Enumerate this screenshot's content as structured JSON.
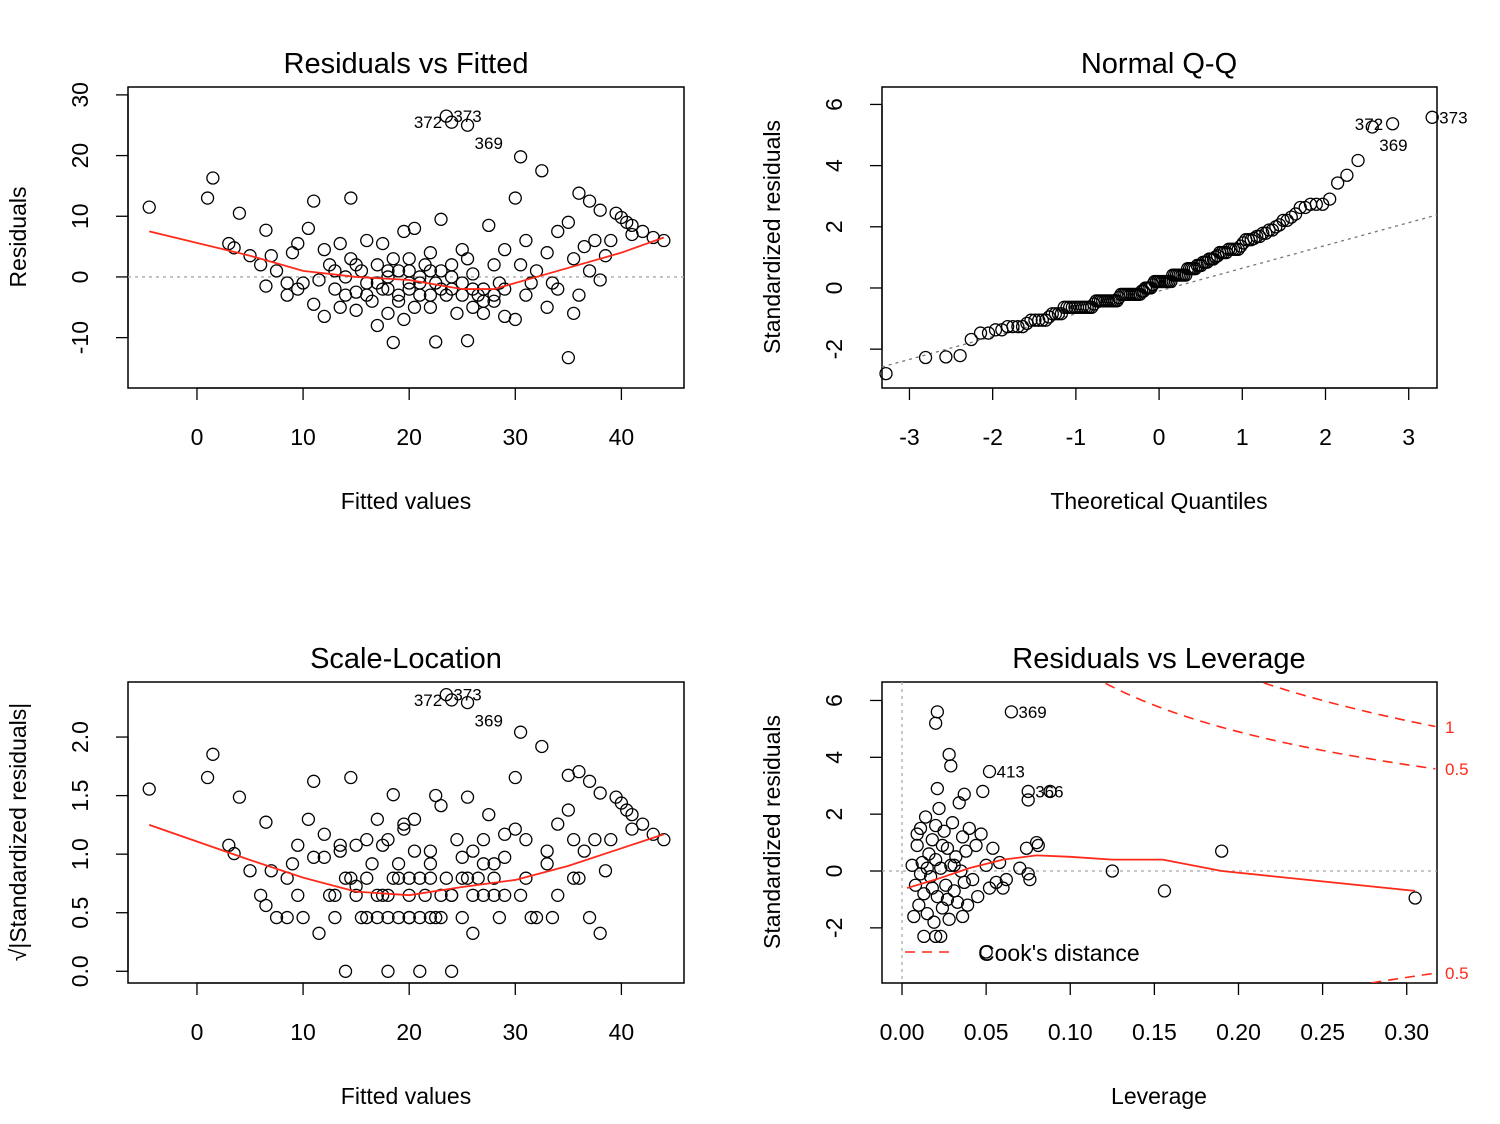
{
  "chart_data": [
    {
      "type": "scatter",
      "title": "Residuals vs Fitted",
      "xlabel": "Fitted values",
      "ylabel": "Residuals",
      "xlim": [
        -6.5,
        45.9
      ],
      "ylim": [
        -18.3,
        31.3
      ],
      "xticks": [
        0,
        10,
        20,
        30,
        40
      ],
      "yticks": [
        -10,
        0,
        10,
        20,
        30
      ],
      "ref_line_y": 0,
      "points": [
        [
          -4.5,
          11.5
        ],
        [
          1,
          13
        ],
        [
          1.5,
          16.3
        ],
        [
          4,
          10.5
        ],
        [
          3,
          5.5
        ],
        [
          3.5,
          4.8
        ],
        [
          5,
          3.5
        ],
        [
          6,
          2
        ],
        [
          6.5,
          7.7
        ],
        [
          6.5,
          -1.5
        ],
        [
          7,
          3.5
        ],
        [
          7.5,
          1
        ],
        [
          8.5,
          -3
        ],
        [
          8.5,
          -1
        ],
        [
          9,
          4
        ],
        [
          9.5,
          5.5
        ],
        [
          9.5,
          -2
        ],
        [
          10,
          -1
        ],
        [
          10.5,
          8
        ],
        [
          11,
          12.5
        ],
        [
          11,
          -4.5
        ],
        [
          11.5,
          -0.5
        ],
        [
          12,
          4.5
        ],
        [
          12,
          -6.5
        ],
        [
          12.5,
          2
        ],
        [
          13,
          -2
        ],
        [
          13.5,
          5.5
        ],
        [
          13.5,
          -5
        ],
        [
          14,
          0
        ],
        [
          14,
          -3
        ],
        [
          14.5,
          13
        ],
        [
          14.5,
          3
        ],
        [
          15,
          -2.5
        ],
        [
          15,
          -5.5
        ],
        [
          15.5,
          1
        ],
        [
          16,
          6
        ],
        [
          16,
          -1
        ],
        [
          16.5,
          -4
        ],
        [
          17,
          2
        ],
        [
          17,
          -8
        ],
        [
          17.5,
          5.5
        ],
        [
          17.5,
          -2
        ],
        [
          18,
          0
        ],
        [
          18,
          -6
        ],
        [
          18.5,
          -10.8
        ],
        [
          18.5,
          3
        ],
        [
          19,
          -3
        ],
        [
          19,
          1
        ],
        [
          19.5,
          -7
        ],
        [
          19.5,
          7.5
        ],
        [
          20,
          -1
        ],
        [
          20,
          3
        ],
        [
          20.5,
          -5
        ],
        [
          20.5,
          8
        ],
        [
          21,
          0
        ],
        [
          21,
          -3
        ],
        [
          21.5,
          2
        ],
        [
          22,
          -5
        ],
        [
          22,
          4
        ],
        [
          22.5,
          -1
        ],
        [
          22.5,
          -10.7
        ],
        [
          23,
          1
        ],
        [
          23,
          9.5
        ],
        [
          23.5,
          26.5,
          "373"
        ],
        [
          23.5,
          -3
        ],
        [
          24,
          25.5,
          "372"
        ],
        [
          24,
          -2
        ],
        [
          24.5,
          -6
        ],
        [
          25,
          4.5
        ],
        [
          25,
          -1
        ],
        [
          25.5,
          25,
          "369"
        ],
        [
          25.5,
          -10.5
        ],
        [
          25.5,
          3
        ],
        [
          26,
          -5
        ],
        [
          26,
          0.5
        ],
        [
          26.5,
          -3
        ],
        [
          27,
          -2
        ],
        [
          27,
          -6
        ],
        [
          27.5,
          8.5
        ],
        [
          28,
          -4
        ],
        [
          28,
          2
        ],
        [
          28.5,
          -1
        ],
        [
          29,
          -6.5
        ],
        [
          29,
          4.5
        ],
        [
          30,
          -7
        ],
        [
          30,
          13
        ],
        [
          30.5,
          19.8
        ],
        [
          30.5,
          2
        ],
        [
          31,
          -3
        ],
        [
          31,
          6
        ],
        [
          31.5,
          -1
        ],
        [
          32,
          1
        ],
        [
          32.5,
          17.5
        ],
        [
          33,
          -5
        ],
        [
          33,
          4
        ],
        [
          33.5,
          -1
        ],
        [
          34,
          7.5
        ],
        [
          34,
          -2
        ],
        [
          35,
          -13.3
        ],
        [
          35,
          9
        ],
        [
          35.5,
          3
        ],
        [
          35.5,
          -6
        ],
        [
          36,
          13.8
        ],
        [
          36,
          -3
        ],
        [
          36.5,
          5
        ],
        [
          37,
          12.5
        ],
        [
          37,
          1
        ],
        [
          37.5,
          6
        ],
        [
          38,
          11
        ],
        [
          38,
          -0.5
        ],
        [
          38.5,
          3.5
        ],
        [
          39,
          6
        ],
        [
          39.5,
          10.5
        ],
        [
          40,
          9.8
        ],
        [
          40.5,
          9
        ],
        [
          41,
          8.5
        ],
        [
          41,
          7
        ],
        [
          42,
          7.5
        ],
        [
          43,
          6.5
        ],
        [
          44,
          6
        ],
        [
          16,
          -3
        ],
        [
          17,
          -1
        ],
        [
          18,
          -2
        ],
        [
          19,
          -4
        ],
        [
          20,
          -2
        ],
        [
          21,
          -1
        ],
        [
          22,
          -3
        ],
        [
          23,
          -2
        ],
        [
          24,
          0
        ],
        [
          25,
          -3
        ],
        [
          26,
          -2
        ],
        [
          27,
          -4
        ],
        [
          28,
          -3
        ],
        [
          29,
          -2
        ],
        [
          20,
          1
        ],
        [
          18,
          1
        ],
        [
          22,
          1
        ],
        [
          24,
          2
        ],
        [
          15,
          2
        ],
        [
          13,
          1
        ]
      ],
      "smooth": [
        [
          -4.5,
          7.5
        ],
        [
          5,
          3.5
        ],
        [
          10,
          1
        ],
        [
          15,
          0
        ],
        [
          20,
          -0.5
        ],
        [
          25,
          -2
        ],
        [
          28,
          -2
        ],
        [
          32,
          0
        ],
        [
          36,
          2
        ],
        [
          40,
          4
        ],
        [
          44,
          6.5
        ]
      ]
    },
    {
      "type": "scatter",
      "title": "Normal Q-Q",
      "xlabel": "Theoretical Quantiles",
      "ylabel": "Standardized residuals",
      "xlim": [
        -3.33,
        3.34
      ],
      "ylim": [
        -3.27,
        6.57
      ],
      "xticks": [
        -3,
        -2,
        -1,
        0,
        1,
        2,
        3
      ],
      "yticks": [
        -2,
        0,
        2,
        4,
        6
      ],
      "qq_line": {
        "intercept": -0.1,
        "slope": 0.745
      },
      "residual_scale": 4.75
    },
    {
      "type": "scatter",
      "title": "Scale-Location",
      "xlabel": "Fitted values",
      "ylabel": "√|Standardized residuals|",
      "xlim": [
        -6.5,
        45.9
      ],
      "ylim": [
        -0.1,
        2.47
      ],
      "xticks": [
        0,
        10,
        20,
        30,
        40
      ],
      "yticks": [
        0,
        0.5,
        1,
        1.5,
        2
      ],
      "ytick_labels": [
        "0.0",
        "0.5",
        "1.0",
        "1.5",
        "2.0"
      ],
      "smooth": [
        [
          -4.5,
          1.25
        ],
        [
          5,
          0.95
        ],
        [
          10,
          0.8
        ],
        [
          15,
          0.68
        ],
        [
          20,
          0.65
        ],
        [
          25,
          0.72
        ],
        [
          30,
          0.78
        ],
        [
          35,
          0.9
        ],
        [
          40,
          1.05
        ],
        [
          44,
          1.17
        ]
      ]
    },
    {
      "type": "scatter",
      "title": "Residuals vs Leverage",
      "xlabel": "Leverage",
      "ylabel": "Standardized residuals",
      "xlim": [
        -0.0119,
        0.318
      ],
      "ylim": [
        -3.94,
        6.65
      ],
      "xticks": [
        0,
        0.05,
        0.1,
        0.15,
        0.2,
        0.25,
        0.3
      ],
      "xtick_labels": [
        "0.00",
        "0.05",
        "0.10",
        "0.15",
        "0.20",
        "0.25",
        "0.30"
      ],
      "yticks": [
        -2,
        0,
        2,
        4,
        6
      ],
      "legend": {
        "label": "Cook's distance",
        "position": "bottom-left"
      },
      "cook_levels": [
        {
          "level": 0.5,
          "label": "0.5"
        },
        {
          "level": 1,
          "label": "1"
        }
      ],
      "cook_params": 12,
      "points": [
        [
          0.065,
          5.6,
          "369"
        ],
        [
          0.052,
          3.5,
          "413"
        ],
        [
          0.075,
          2.8,
          "366"
        ],
        [
          0.021,
          5.6
        ],
        [
          0.02,
          5.2
        ],
        [
          0.028,
          4.1
        ],
        [
          0.029,
          3.7
        ],
        [
          0.021,
          2.9
        ],
        [
          0.037,
          2.7
        ],
        [
          0.048,
          2.8
        ],
        [
          0.075,
          2.5
        ],
        [
          0.088,
          2.8
        ],
        [
          0.08,
          1.0
        ],
        [
          0.074,
          0.8
        ],
        [
          0.081,
          0.9
        ],
        [
          0.125,
          0
        ],
        [
          0.156,
          -0.7
        ],
        [
          0.19,
          0.7
        ],
        [
          0.305,
          -0.95
        ],
        [
          0.013,
          -2.3
        ],
        [
          0.02,
          -2.3
        ],
        [
          0.023,
          -2.3
        ],
        [
          0.05,
          -2.85
        ],
        [
          0.006,
          0.2
        ],
        [
          0.008,
          -0.5
        ],
        [
          0.009,
          0.9
        ],
        [
          0.01,
          -1.2
        ],
        [
          0.011,
          1.5
        ],
        [
          0.012,
          0.3
        ],
        [
          0.013,
          -0.8
        ],
        [
          0.014,
          1.9
        ],
        [
          0.015,
          -1.5
        ],
        [
          0.016,
          0.6
        ],
        [
          0.017,
          -0.2
        ],
        [
          0.018,
          1.1
        ],
        [
          0.019,
          -1.8
        ],
        [
          0.02,
          0.4
        ],
        [
          0.021,
          -0.9
        ],
        [
          0.022,
          2.2
        ],
        [
          0.023,
          0.1
        ],
        [
          0.024,
          -1.3
        ],
        [
          0.025,
          1.4
        ],
        [
          0.026,
          -0.5
        ],
        [
          0.027,
          0.8
        ],
        [
          0.028,
          -1.7
        ],
        [
          0.029,
          0.2
        ],
        [
          0.03,
          1.7
        ],
        [
          0.031,
          -0.7
        ],
        [
          0.032,
          0.5
        ],
        [
          0.033,
          -1.1
        ],
        [
          0.034,
          2.4
        ],
        [
          0.035,
          0.0
        ],
        [
          0.036,
          1.2
        ],
        [
          0.037,
          -0.4
        ],
        [
          0.038,
          0.7
        ],
        [
          0.039,
          -1.2
        ],
        [
          0.04,
          1.5
        ],
        [
          0.042,
          -0.3
        ],
        [
          0.044,
          0.9
        ],
        [
          0.045,
          -0.9
        ],
        [
          0.047,
          1.3
        ],
        [
          0.05,
          0.2
        ],
        [
          0.052,
          -0.6
        ],
        [
          0.054,
          0.8
        ],
        [
          0.056,
          -0.4
        ],
        [
          0.058,
          0.3
        ],
        [
          0.06,
          -0.6
        ],
        [
          0.062,
          -0.3
        ],
        [
          0.07,
          0.1
        ],
        [
          0.075,
          -0.1
        ],
        [
          0.076,
          -0.3
        ],
        [
          0.007,
          -1.6
        ],
        [
          0.009,
          1.3
        ],
        [
          0.011,
          -0.1
        ],
        [
          0.015,
          0.1
        ],
        [
          0.018,
          -0.6
        ],
        [
          0.02,
          1.6
        ],
        [
          0.024,
          0.9
        ],
        [
          0.027,
          -1.0
        ],
        [
          0.031,
          0.2
        ],
        [
          0.036,
          -1.6
        ]
      ],
      "smooth": [
        [
          0.003,
          -0.6
        ],
        [
          0.02,
          -0.3
        ],
        [
          0.04,
          0.1
        ],
        [
          0.06,
          0.4
        ],
        [
          0.08,
          0.55
        ],
        [
          0.1,
          0.5
        ],
        [
          0.125,
          0.4
        ],
        [
          0.155,
          0.4
        ],
        [
          0.19,
          0
        ],
        [
          0.305,
          -0.7
        ]
      ]
    }
  ],
  "colors": {
    "smooth": "#ff2a1a",
    "reference": "#a8a8a8",
    "points": "#000000"
  }
}
